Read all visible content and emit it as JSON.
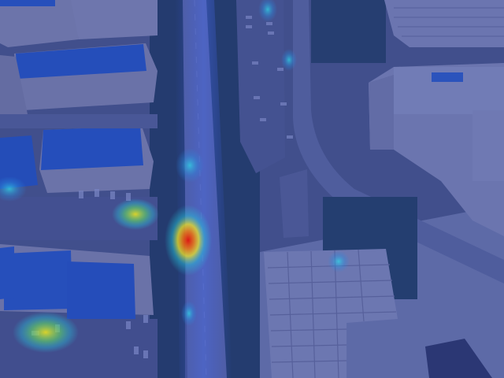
{
  "image": {
    "kind": "aerial photograph with density heatmap overlay",
    "overlay_colors": {
      "base": "#1f35a8",
      "low": "#19c8e0",
      "mid": "#f0e020",
      "high": "#e02010"
    },
    "palette": {
      "roof_blue": "#2e6fd1",
      "building_light": "#c9c2b4",
      "road": "#8e9296",
      "trees": "#27402a",
      "parking": "#6d6f70"
    }
  }
}
